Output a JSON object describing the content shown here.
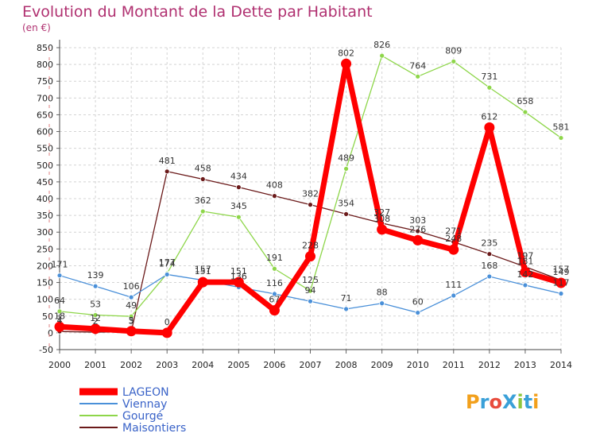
{
  "header": {
    "title": "Evolution du Montant de la Dette par Habitant",
    "unit": "(en €)"
  },
  "logo": {
    "text": "ProXiti"
  },
  "chart_data": {
    "type": "line",
    "title": "Evolution du Montant de la Dette par Habitant",
    "subtitle": "(en €)",
    "x": [
      "2000",
      "2001",
      "2002",
      "2003",
      "2004",
      "2005",
      "2006",
      "2007",
      "2008",
      "2009",
      "2010",
      "2011",
      "2012",
      "2013",
      "2014"
    ],
    "y_ticks": [
      -50,
      0,
      50,
      100,
      150,
      200,
      250,
      300,
      350,
      400,
      450,
      500,
      550,
      600,
      650,
      700,
      750,
      800,
      850
    ],
    "ylim": [
      -50,
      850
    ],
    "grid": true,
    "legend_position": "bottom-left",
    "series": [
      {
        "name": "LAGEON",
        "color": "#ff0000",
        "width": 7,
        "values": [
          18,
          12,
          5,
          0,
          151,
          151,
          67,
          228,
          802,
          308,
          276,
          248,
          612,
          181,
          149
        ]
      },
      {
        "name": "Viennay",
        "color": "#4a90d9",
        "width": 1.3,
        "values": [
          171,
          139,
          106,
          174,
          157,
          136,
          116,
          94,
          71,
          88,
          60,
          111,
          168,
          142,
          117
        ]
      },
      {
        "name": "Gourgé",
        "color": "#8ed64a",
        "width": 1.3,
        "values": [
          64,
          53,
          49,
          177,
          362,
          345,
          191,
          125,
          489,
          826,
          764,
          809,
          731,
          658,
          581
        ]
      },
      {
        "name": "Maisontiers",
        "color": "#6b1a1a",
        "width": 1.3,
        "values": [
          4,
          2,
          3,
          481,
          458,
          434,
          408,
          382,
          354,
          327,
          303,
          271,
          235,
          197,
          157
        ]
      }
    ]
  }
}
